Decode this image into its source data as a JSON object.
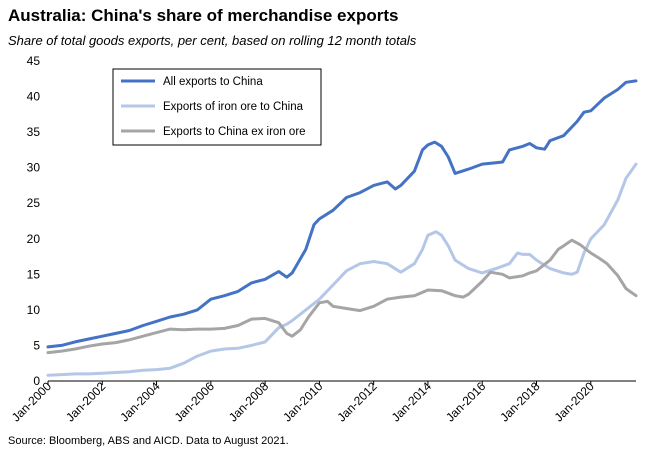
{
  "title": "Australia: China's share of merchandise exports",
  "subtitle": "Share of total goods exports, per cent, based on rolling 12 month totals",
  "source": "Source: Bloomberg, ABS and AICD. Data to August 2021.",
  "chart_data": {
    "type": "line",
    "y_ticks": [
      0,
      5,
      10,
      15,
      20,
      25,
      30,
      35,
      40,
      45
    ],
    "ylim": [
      0,
      45
    ],
    "xlim": [
      2000.0,
      2021.6667
    ],
    "x_ticks": [
      {
        "label": "Jan-2000",
        "x": 2000
      },
      {
        "label": "Jan-2002",
        "x": 2002
      },
      {
        "label": "Jan-2004",
        "x": 2004
      },
      {
        "label": "Jan-2006",
        "x": 2006
      },
      {
        "label": "Jan-2008",
        "x": 2008
      },
      {
        "label": "Jan-2010",
        "x": 2010
      },
      {
        "label": "Jan-2012",
        "x": 2012
      },
      {
        "label": "Jan-2014",
        "x": 2014
      },
      {
        "label": "Jan-2016",
        "x": 2016
      },
      {
        "label": "Jan-2018",
        "x": 2018
      },
      {
        "label": "Jan-2020",
        "x": 2020
      }
    ],
    "legend_position": "top-left",
    "series": [
      {
        "name": "All exports to China",
        "color": "#4472c4",
        "points": [
          [
            2000.0,
            4.8
          ],
          [
            2000.5,
            5.0
          ],
          [
            2001.0,
            5.5
          ],
          [
            2001.5,
            5.9
          ],
          [
            2002.0,
            6.3
          ],
          [
            2002.5,
            6.7
          ],
          [
            2003.0,
            7.1
          ],
          [
            2003.5,
            7.8
          ],
          [
            2004.0,
            8.4
          ],
          [
            2004.5,
            9.0
          ],
          [
            2005.0,
            9.4
          ],
          [
            2005.5,
            10.0
          ],
          [
            2006.0,
            11.5
          ],
          [
            2006.5,
            12.0
          ],
          [
            2007.0,
            12.6
          ],
          [
            2007.5,
            13.8
          ],
          [
            2008.0,
            14.3
          ],
          [
            2008.5,
            15.4
          ],
          [
            2008.8,
            14.6
          ],
          [
            2009.0,
            15.2
          ],
          [
            2009.5,
            18.5
          ],
          [
            2009.8,
            22.0
          ],
          [
            2010.0,
            22.8
          ],
          [
            2010.5,
            24.0
          ],
          [
            2011.0,
            25.8
          ],
          [
            2011.5,
            26.5
          ],
          [
            2012.0,
            27.5
          ],
          [
            2012.5,
            28.0
          ],
          [
            2012.8,
            27.0
          ],
          [
            2013.0,
            27.5
          ],
          [
            2013.5,
            29.5
          ],
          [
            2013.8,
            32.5
          ],
          [
            2014.0,
            33.2
          ],
          [
            2014.25,
            33.6
          ],
          [
            2014.5,
            33.0
          ],
          [
            2014.75,
            31.5
          ],
          [
            2015.0,
            29.2
          ],
          [
            2015.5,
            29.8
          ],
          [
            2016.0,
            30.5
          ],
          [
            2016.5,
            30.7
          ],
          [
            2016.75,
            30.8
          ],
          [
            2017.0,
            32.5
          ],
          [
            2017.5,
            33.0
          ],
          [
            2017.75,
            33.4
          ],
          [
            2018.0,
            32.8
          ],
          [
            2018.3,
            32.6
          ],
          [
            2018.5,
            33.8
          ],
          [
            2019.0,
            34.5
          ],
          [
            2019.5,
            36.5
          ],
          [
            2019.75,
            37.8
          ],
          [
            2020.0,
            38.0
          ],
          [
            2020.5,
            39.8
          ],
          [
            2021.0,
            41.0
          ],
          [
            2021.3,
            42.0
          ],
          [
            2021.6667,
            42.2
          ]
        ]
      },
      {
        "name": "Exports of iron ore to China",
        "color": "#b4c7e7",
        "points": [
          [
            2000.0,
            0.8
          ],
          [
            2000.5,
            0.9
          ],
          [
            2001.0,
            1.0
          ],
          [
            2001.5,
            1.0
          ],
          [
            2002.0,
            1.1
          ],
          [
            2002.5,
            1.2
          ],
          [
            2003.0,
            1.3
          ],
          [
            2003.5,
            1.5
          ],
          [
            2004.0,
            1.6
          ],
          [
            2004.5,
            1.8
          ],
          [
            2005.0,
            2.5
          ],
          [
            2005.5,
            3.5
          ],
          [
            2006.0,
            4.2
          ],
          [
            2006.5,
            4.5
          ],
          [
            2007.0,
            4.6
          ],
          [
            2007.5,
            5.0
          ],
          [
            2008.0,
            5.5
          ],
          [
            2008.5,
            7.5
          ],
          [
            2008.8,
            8.0
          ],
          [
            2009.0,
            8.5
          ],
          [
            2009.5,
            10.0
          ],
          [
            2010.0,
            11.5
          ],
          [
            2010.5,
            13.5
          ],
          [
            2011.0,
            15.5
          ],
          [
            2011.5,
            16.5
          ],
          [
            2012.0,
            16.8
          ],
          [
            2012.5,
            16.5
          ],
          [
            2013.0,
            15.3
          ],
          [
            2013.5,
            16.5
          ],
          [
            2013.8,
            18.5
          ],
          [
            2014.0,
            20.5
          ],
          [
            2014.3,
            21.0
          ],
          [
            2014.5,
            20.5
          ],
          [
            2014.75,
            19.0
          ],
          [
            2015.0,
            17.0
          ],
          [
            2015.5,
            15.8
          ],
          [
            2016.0,
            15.2
          ],
          [
            2016.5,
            15.8
          ],
          [
            2017.0,
            16.5
          ],
          [
            2017.3,
            18.0
          ],
          [
            2017.5,
            17.8
          ],
          [
            2017.75,
            17.8
          ],
          [
            2018.0,
            17.0
          ],
          [
            2018.5,
            15.8
          ],
          [
            2019.0,
            15.2
          ],
          [
            2019.3,
            15.0
          ],
          [
            2019.5,
            15.3
          ],
          [
            2019.75,
            18.0
          ],
          [
            2020.0,
            20.0
          ],
          [
            2020.5,
            22.0
          ],
          [
            2021.0,
            25.5
          ],
          [
            2021.3,
            28.5
          ],
          [
            2021.6667,
            30.5
          ]
        ]
      },
      {
        "name": "Exports to China ex iron ore",
        "color": "#a5a5a5",
        "points": [
          [
            2000.0,
            4.0
          ],
          [
            2000.5,
            4.2
          ],
          [
            2001.0,
            4.5
          ],
          [
            2001.5,
            4.9
          ],
          [
            2002.0,
            5.2
          ],
          [
            2002.5,
            5.4
          ],
          [
            2003.0,
            5.8
          ],
          [
            2003.5,
            6.3
          ],
          [
            2004.0,
            6.8
          ],
          [
            2004.5,
            7.3
          ],
          [
            2005.0,
            7.2
          ],
          [
            2005.5,
            7.3
          ],
          [
            2006.0,
            7.3
          ],
          [
            2006.5,
            7.4
          ],
          [
            2007.0,
            7.8
          ],
          [
            2007.5,
            8.7
          ],
          [
            2008.0,
            8.8
          ],
          [
            2008.5,
            8.2
          ],
          [
            2008.8,
            6.7
          ],
          [
            2009.0,
            6.3
          ],
          [
            2009.3,
            7.2
          ],
          [
            2009.6,
            9.0
          ],
          [
            2010.0,
            11.0
          ],
          [
            2010.3,
            11.2
          ],
          [
            2010.5,
            10.5
          ],
          [
            2011.0,
            10.2
          ],
          [
            2011.5,
            9.9
          ],
          [
            2012.0,
            10.5
          ],
          [
            2012.5,
            11.5
          ],
          [
            2013.0,
            11.8
          ],
          [
            2013.5,
            12.0
          ],
          [
            2014.0,
            12.8
          ],
          [
            2014.5,
            12.7
          ],
          [
            2015.0,
            12.0
          ],
          [
            2015.3,
            11.8
          ],
          [
            2015.5,
            12.2
          ],
          [
            2016.0,
            14.0
          ],
          [
            2016.3,
            15.3
          ],
          [
            2016.75,
            15.0
          ],
          [
            2017.0,
            14.5
          ],
          [
            2017.5,
            14.8
          ],
          [
            2017.75,
            15.2
          ],
          [
            2018.0,
            15.5
          ],
          [
            2018.5,
            17.0
          ],
          [
            2018.8,
            18.5
          ],
          [
            2019.0,
            19.0
          ],
          [
            2019.3,
            19.8
          ],
          [
            2019.6,
            19.2
          ],
          [
            2020.0,
            18.0
          ],
          [
            2020.3,
            17.3
          ],
          [
            2020.6,
            16.5
          ],
          [
            2021.0,
            14.8
          ],
          [
            2021.3,
            13.0
          ],
          [
            2021.6667,
            12.0
          ]
        ]
      }
    ]
  }
}
